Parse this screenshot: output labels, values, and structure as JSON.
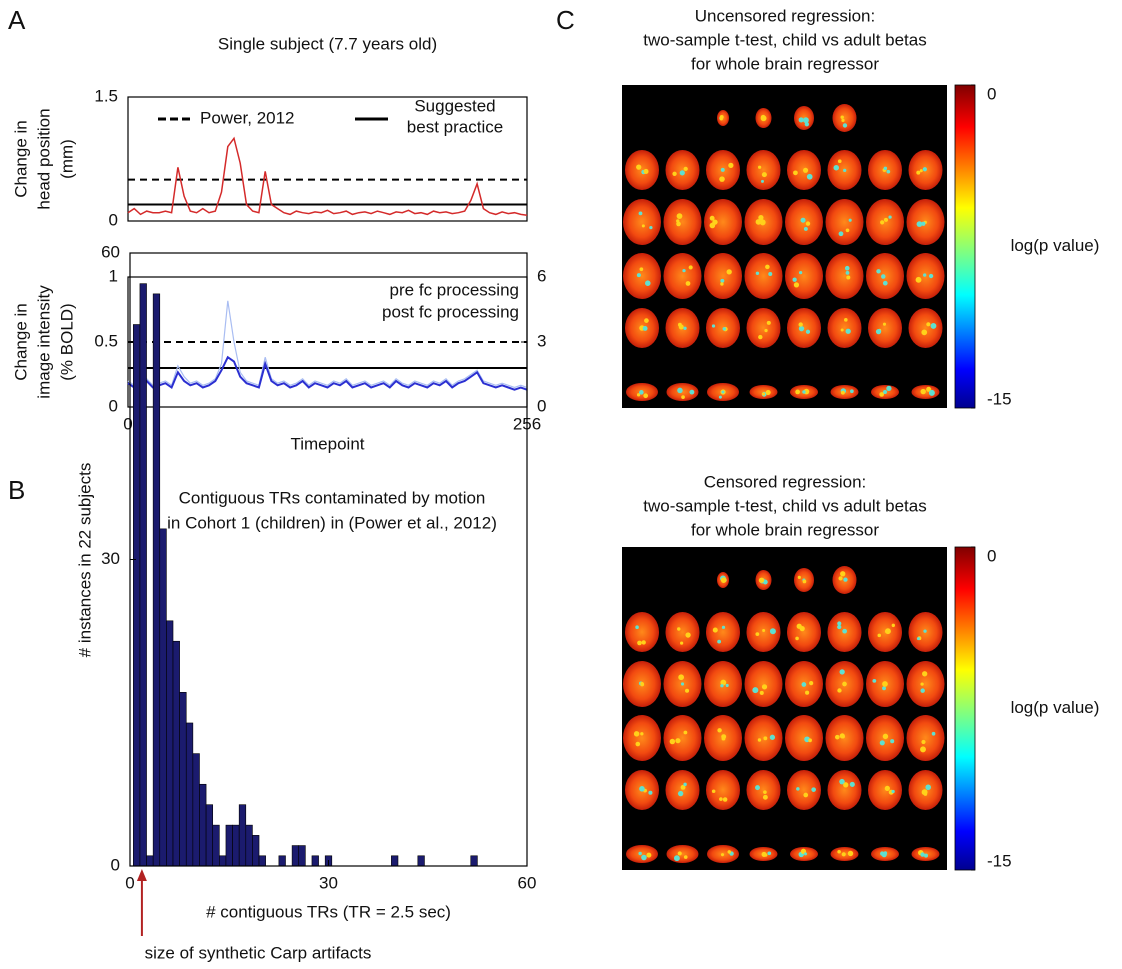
{
  "panel_labels": [
    "A",
    "B",
    "C"
  ],
  "chart_data": [
    {
      "type": "line",
      "title": "Single subject (7.7 years old)",
      "ylabel": [
        "Change in",
        "head position",
        "(mm)"
      ],
      "xlim": [
        0,
        256
      ],
      "ylim": [
        0,
        1.5
      ],
      "yticks": [
        0,
        1.5
      ],
      "color": "#d42a2a",
      "x": [
        0,
        4,
        8,
        12,
        16,
        20,
        24,
        28,
        32,
        36,
        40,
        44,
        48,
        52,
        56,
        60,
        64,
        68,
        72,
        76,
        80,
        84,
        88,
        92,
        96,
        100,
        104,
        108,
        112,
        116,
        120,
        124,
        128,
        132,
        136,
        140,
        144,
        148,
        152,
        156,
        160,
        164,
        168,
        172,
        176,
        180,
        184,
        188,
        192,
        196,
        200,
        204,
        208,
        212,
        216,
        220,
        224,
        228,
        232,
        236,
        240,
        244,
        248,
        252,
        256
      ],
      "values": [
        0.1,
        0.15,
        0.08,
        0.12,
        0.1,
        0.1,
        0.12,
        0.1,
        0.65,
        0.3,
        0.12,
        0.1,
        0.15,
        0.1,
        0.12,
        0.35,
        0.9,
        1.0,
        0.7,
        0.2,
        0.12,
        0.1,
        0.6,
        0.2,
        0.15,
        0.1,
        0.08,
        0.12,
        0.1,
        0.09,
        0.11,
        0.1,
        0.13,
        0.09,
        0.1,
        0.12,
        0.08,
        0.1,
        0.11,
        0.09,
        0.12,
        0.1,
        0.08,
        0.11,
        0.1,
        0.13,
        0.09,
        0.1,
        0.08,
        0.12,
        0.1,
        0.11,
        0.09,
        0.1,
        0.12,
        0.25,
        0.45,
        0.15,
        0.1,
        0.08,
        0.11,
        0.09,
        0.1,
        0.08,
        0.07
      ],
      "hlines": [
        {
          "name": [
            "Power, 2012"
          ],
          "value": 0.5,
          "style": "dashed"
        },
        {
          "name": [
            "Suggested",
            "best practice"
          ],
          "value": 0.2,
          "style": "solid"
        }
      ]
    },
    {
      "type": "line",
      "ylabel": [
        "Change in",
        "image intensity",
        "(% BOLD)"
      ],
      "xlabel": "Timepoint",
      "xlim": [
        0,
        256
      ],
      "xticks": [
        0,
        256
      ],
      "ylim": [
        0,
        1
      ],
      "yticks": [
        0,
        0.5,
        1
      ],
      "y2lim": [
        0,
        6
      ],
      "y2ticks": [
        0,
        3,
        6
      ],
      "y2color": "#a9bdf2",
      "hlines": [
        {
          "value": 0.5,
          "style": "dashed"
        },
        {
          "value": 0.3,
          "style": "solid"
        }
      ],
      "x": [
        0,
        4,
        8,
        12,
        16,
        20,
        24,
        28,
        32,
        36,
        40,
        44,
        48,
        52,
        56,
        60,
        64,
        68,
        72,
        76,
        80,
        84,
        88,
        92,
        96,
        100,
        104,
        108,
        112,
        116,
        120,
        124,
        128,
        132,
        136,
        140,
        144,
        148,
        152,
        156,
        160,
        164,
        168,
        172,
        176,
        180,
        184,
        188,
        192,
        196,
        200,
        204,
        208,
        212,
        216,
        220,
        224,
        228,
        232,
        236,
        240,
        244,
        248,
        252,
        256
      ],
      "series": [
        {
          "name": "pre  fc processing",
          "color": "#a9bdf2",
          "axis": "y2",
          "width": 1.2,
          "values": [
            1.2,
            1.0,
            1.1,
            1.3,
            1.0,
            1.1,
            1.2,
            1.0,
            1.9,
            1.4,
            1.1,
            1.2,
            1.0,
            1.1,
            1.3,
            2.0,
            4.9,
            3.0,
            1.6,
            1.2,
            1.1,
            1.0,
            2.3,
            1.3,
            1.1,
            1.2,
            1.0,
            1.1,
            1.3,
            1.0,
            1.2,
            1.1,
            1.0,
            1.2,
            1.1,
            1.3,
            1.0,
            1.1,
            1.2,
            1.0,
            1.1,
            1.2,
            1.0,
            1.3,
            1.1,
            1.0,
            1.2,
            1.1,
            1.0,
            1.2,
            1.1,
            1.3,
            1.0,
            1.2,
            1.3,
            1.5,
            1.7,
            1.2,
            1.1,
            1.0,
            1.1,
            1.0,
            0.9,
            1.0,
            0.9
          ]
        },
        {
          "name": "post fc processing",
          "color": "#2b2fd1",
          "axis": "y2",
          "width": 2,
          "values": [
            1.1,
            0.9,
            1.0,
            1.2,
            0.9,
            1.0,
            1.1,
            0.9,
            1.6,
            1.2,
            1.0,
            1.1,
            0.9,
            1.0,
            1.2,
            1.7,
            2.3,
            2.1,
            1.4,
            1.1,
            1.0,
            0.9,
            2.0,
            1.2,
            1.0,
            1.1,
            0.9,
            1.0,
            1.2,
            0.9,
            1.1,
            1.0,
            0.9,
            1.1,
            1.0,
            1.2,
            0.9,
            1.0,
            1.1,
            0.9,
            1.0,
            1.1,
            0.9,
            1.2,
            1.0,
            0.9,
            1.1,
            1.0,
            0.9,
            1.1,
            1.0,
            1.2,
            0.9,
            1.1,
            1.2,
            1.4,
            1.6,
            1.1,
            1.0,
            0.9,
            1.0,
            0.9,
            0.8,
            0.9,
            0.8
          ]
        }
      ]
    },
    {
      "type": "histogram",
      "title": [
        "Contiguous TRs contaminated by motion",
        "in Cohort 1 (children) in (Power et al., 2012)"
      ],
      "xlabel": "# contiguous TRs (TR = 2.5 sec)",
      "ylabel": "# instances in 22 subjects",
      "xlim": [
        0,
        60
      ],
      "xticks": [
        0,
        30,
        60
      ],
      "ylim": [
        0,
        60
      ],
      "yticks": [
        0,
        30,
        60
      ],
      "color": "#1b1b6e",
      "bins": [
        0.5,
        1.5,
        2.5,
        3.5,
        4.5,
        5.5,
        6.5,
        7.5,
        8.5,
        9.5,
        10.5,
        11.5,
        12.5,
        13.5,
        14.5,
        15.5,
        16.5,
        17.5,
        18.5,
        19.5,
        20.5,
        21.5,
        22.5,
        23.5,
        24.5,
        25.5,
        26.5,
        27.5,
        28.5,
        29.5,
        30.5,
        31.5,
        32.5,
        33.5,
        34.5,
        35.5,
        36.5,
        37.5,
        38.5,
        39.5,
        40.5,
        41.5,
        42.5,
        43.5,
        44.5,
        45.5,
        46.5,
        47.5,
        48.5,
        49.5,
        50.5,
        51.5,
        52.5
      ],
      "values": [
        53,
        57,
        1,
        56,
        33,
        24,
        22,
        17,
        14,
        11,
        8,
        6,
        4,
        1,
        4,
        4,
        6,
        4,
        3,
        1,
        0,
        0,
        1,
        0,
        2,
        2,
        0,
        1,
        0,
        1,
        0,
        0,
        0,
        0,
        0,
        0,
        0,
        0,
        0,
        1,
        0,
        0,
        0,
        1,
        0,
        0,
        0,
        0,
        0,
        0,
        0,
        1
      ],
      "annotation": "size of synthetic Carp artifacts",
      "annotation_color": "#b22222"
    },
    {
      "type": "image",
      "title": [
        "Uncensored regression:",
        "two-sample t-test, child vs adult betas",
        "for whole brain regressor"
      ],
      "clim": [
        -15,
        0
      ],
      "cticks": [
        0,
        -15
      ],
      "clabel": "log(p value)"
    },
    {
      "type": "image",
      "title": [
        "Censored regression:",
        "two-sample t-test, child vs adult betas",
        "for whole brain regressor"
      ],
      "clim": [
        -15,
        0
      ],
      "cticks": [
        0,
        -15
      ],
      "clabel": "log(p value)"
    }
  ]
}
